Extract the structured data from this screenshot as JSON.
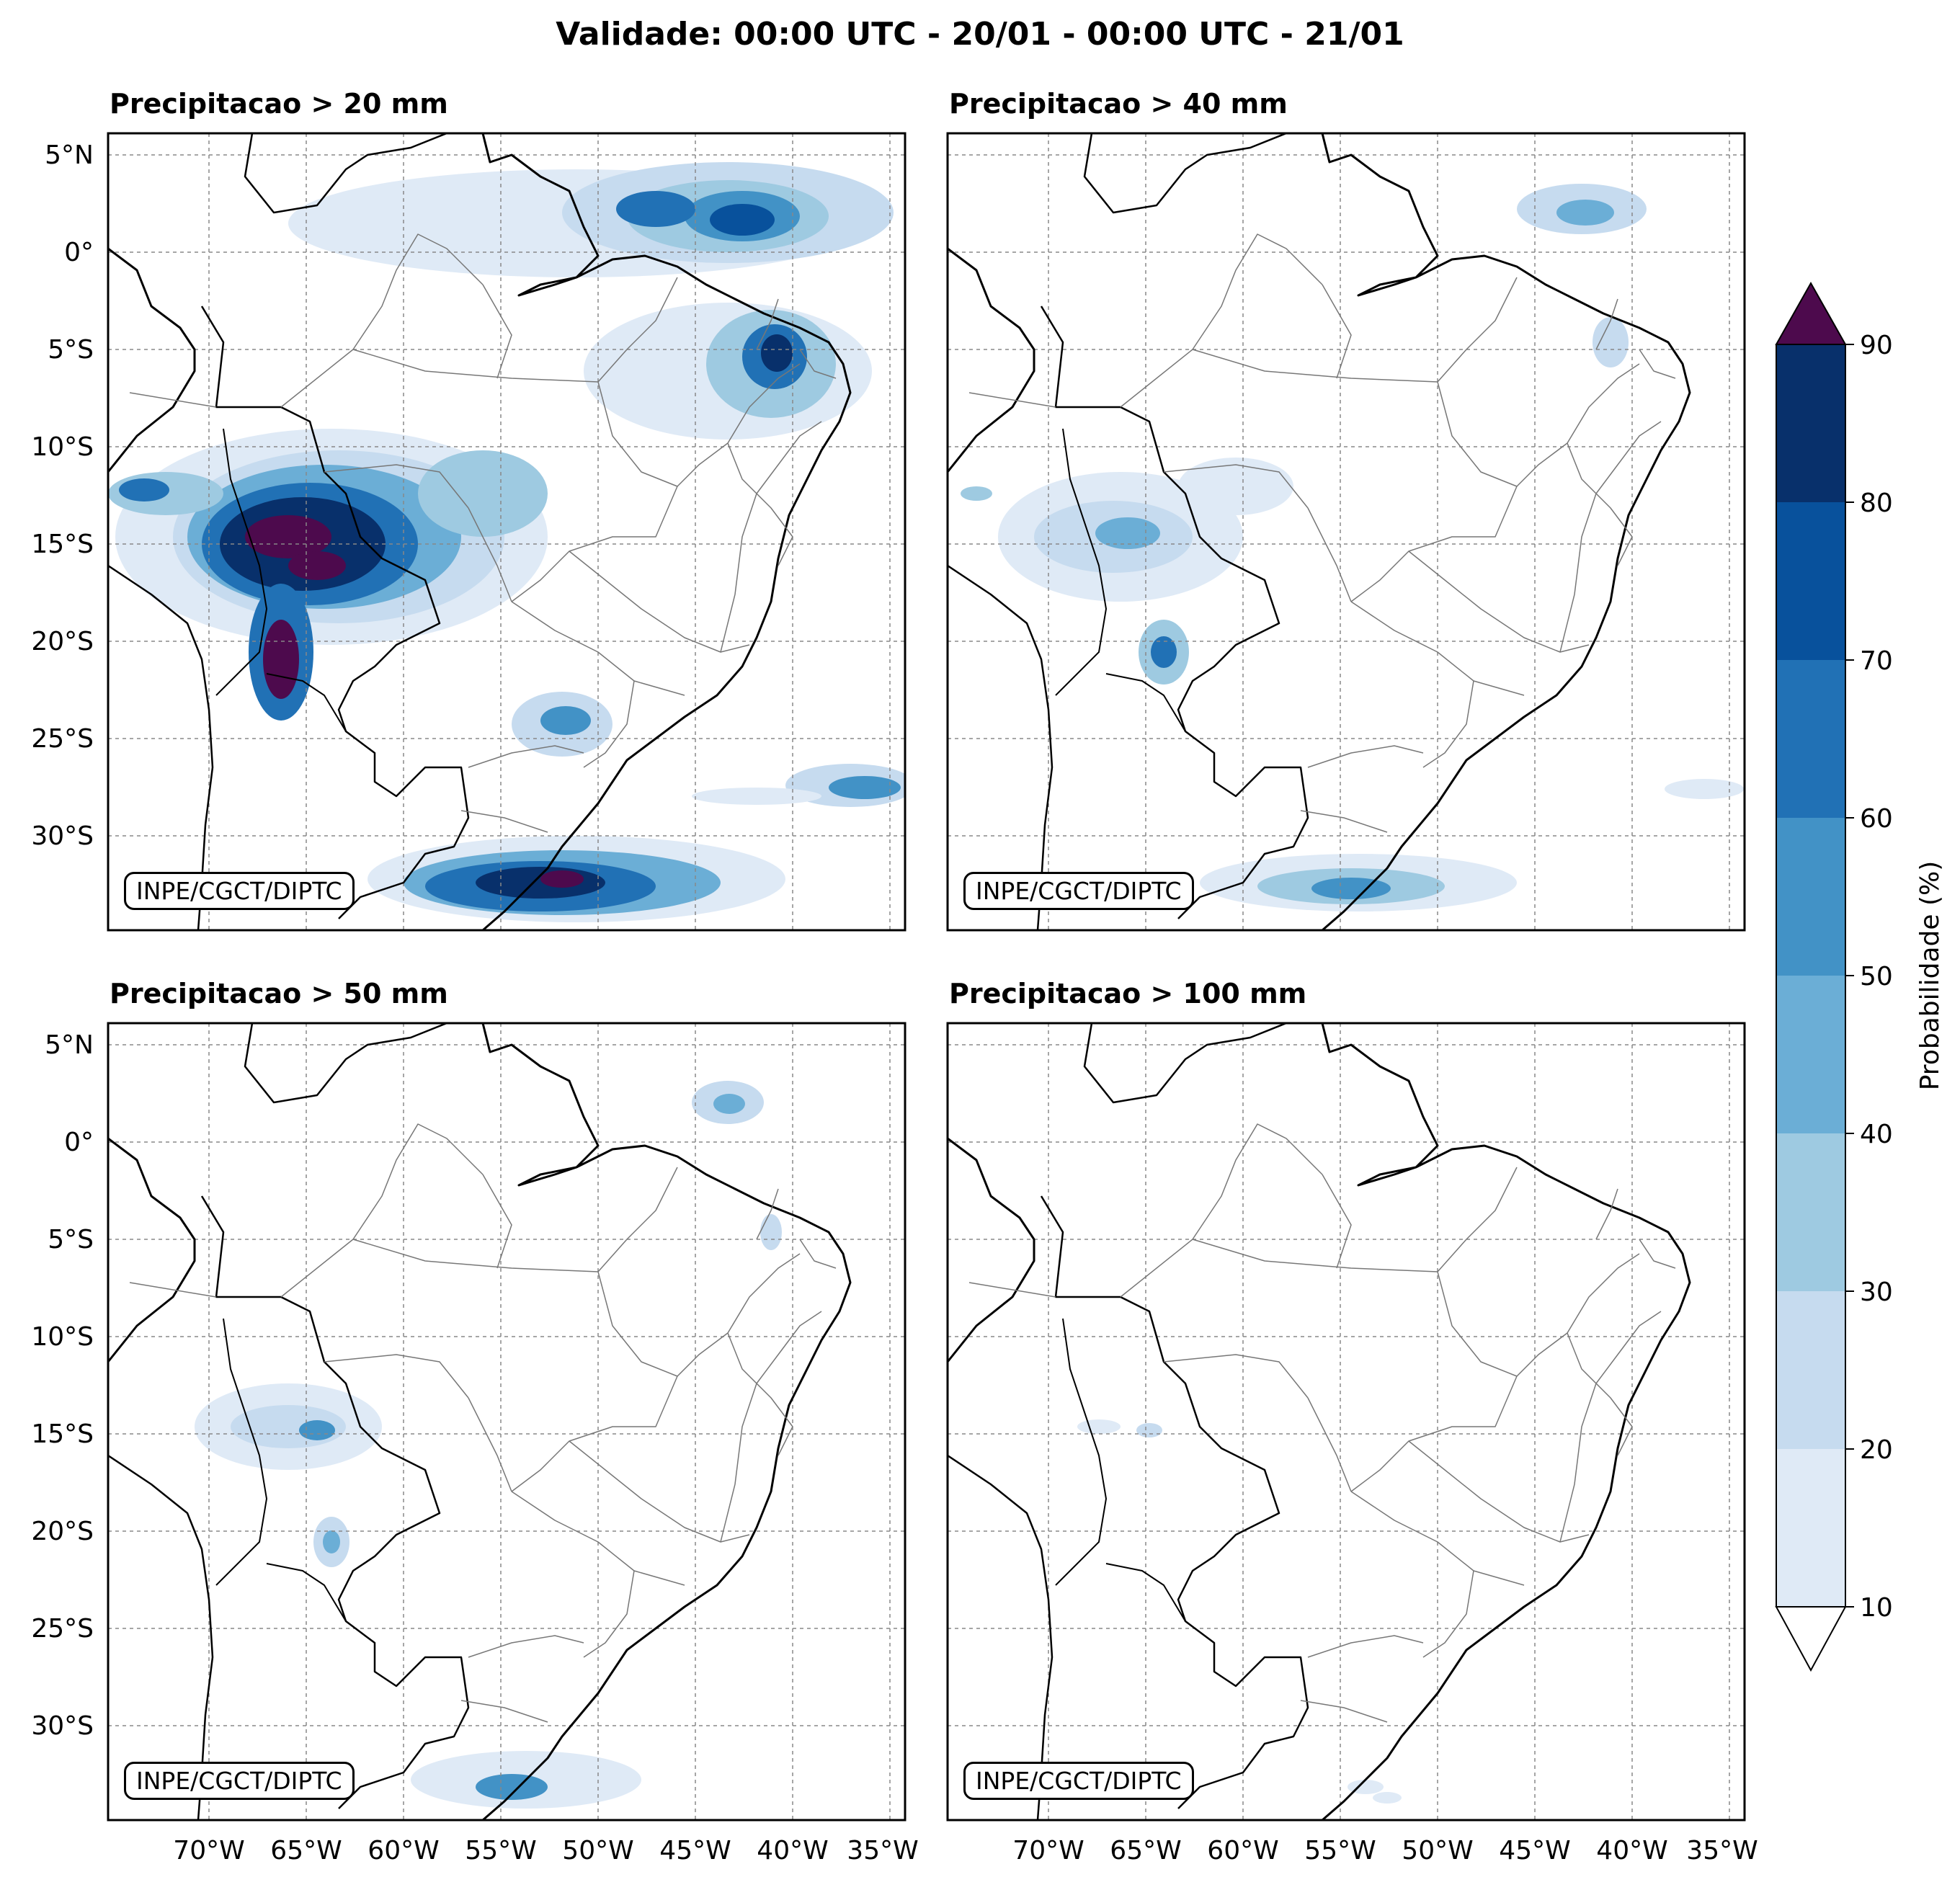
{
  "title": "Validade: 00:00 UTC - 20/01 - 00:00 UTC - 21/01",
  "panels": [
    {
      "title": "Precipitacao > 20 mm",
      "credit": "INPE/CGCT/DIPTC"
    },
    {
      "title": "Precipitacao > 40 mm",
      "credit": "INPE/CGCT/DIPTC"
    },
    {
      "title": "Precipitacao > 50 mm",
      "credit": "INPE/CGCT/DIPTC"
    },
    {
      "title": "Precipitacao > 100 mm",
      "credit": "INPE/CGCT/DIPTC"
    }
  ],
  "lat_labels": [
    "5°N",
    "0°",
    "5°S",
    "10°S",
    "15°S",
    "20°S",
    "25°S",
    "30°S"
  ],
  "lon_labels": [
    "70°W",
    "65°W",
    "60°W",
    "55°W",
    "50°W",
    "45°W",
    "40°W",
    "35°W"
  ],
  "colorbar": {
    "label": "Probabilidade (%)",
    "ticks": [
      "10",
      "20",
      "30",
      "40",
      "50",
      "60",
      "70",
      "80",
      "90"
    ],
    "colors": [
      "#dfeaf6",
      "#c6dbef",
      "#9ecae1",
      "#6baed6",
      "#4292c6",
      "#2171b5",
      "#08519c",
      "#08306b"
    ],
    "over_color": "#4d0a4d"
  }
}
